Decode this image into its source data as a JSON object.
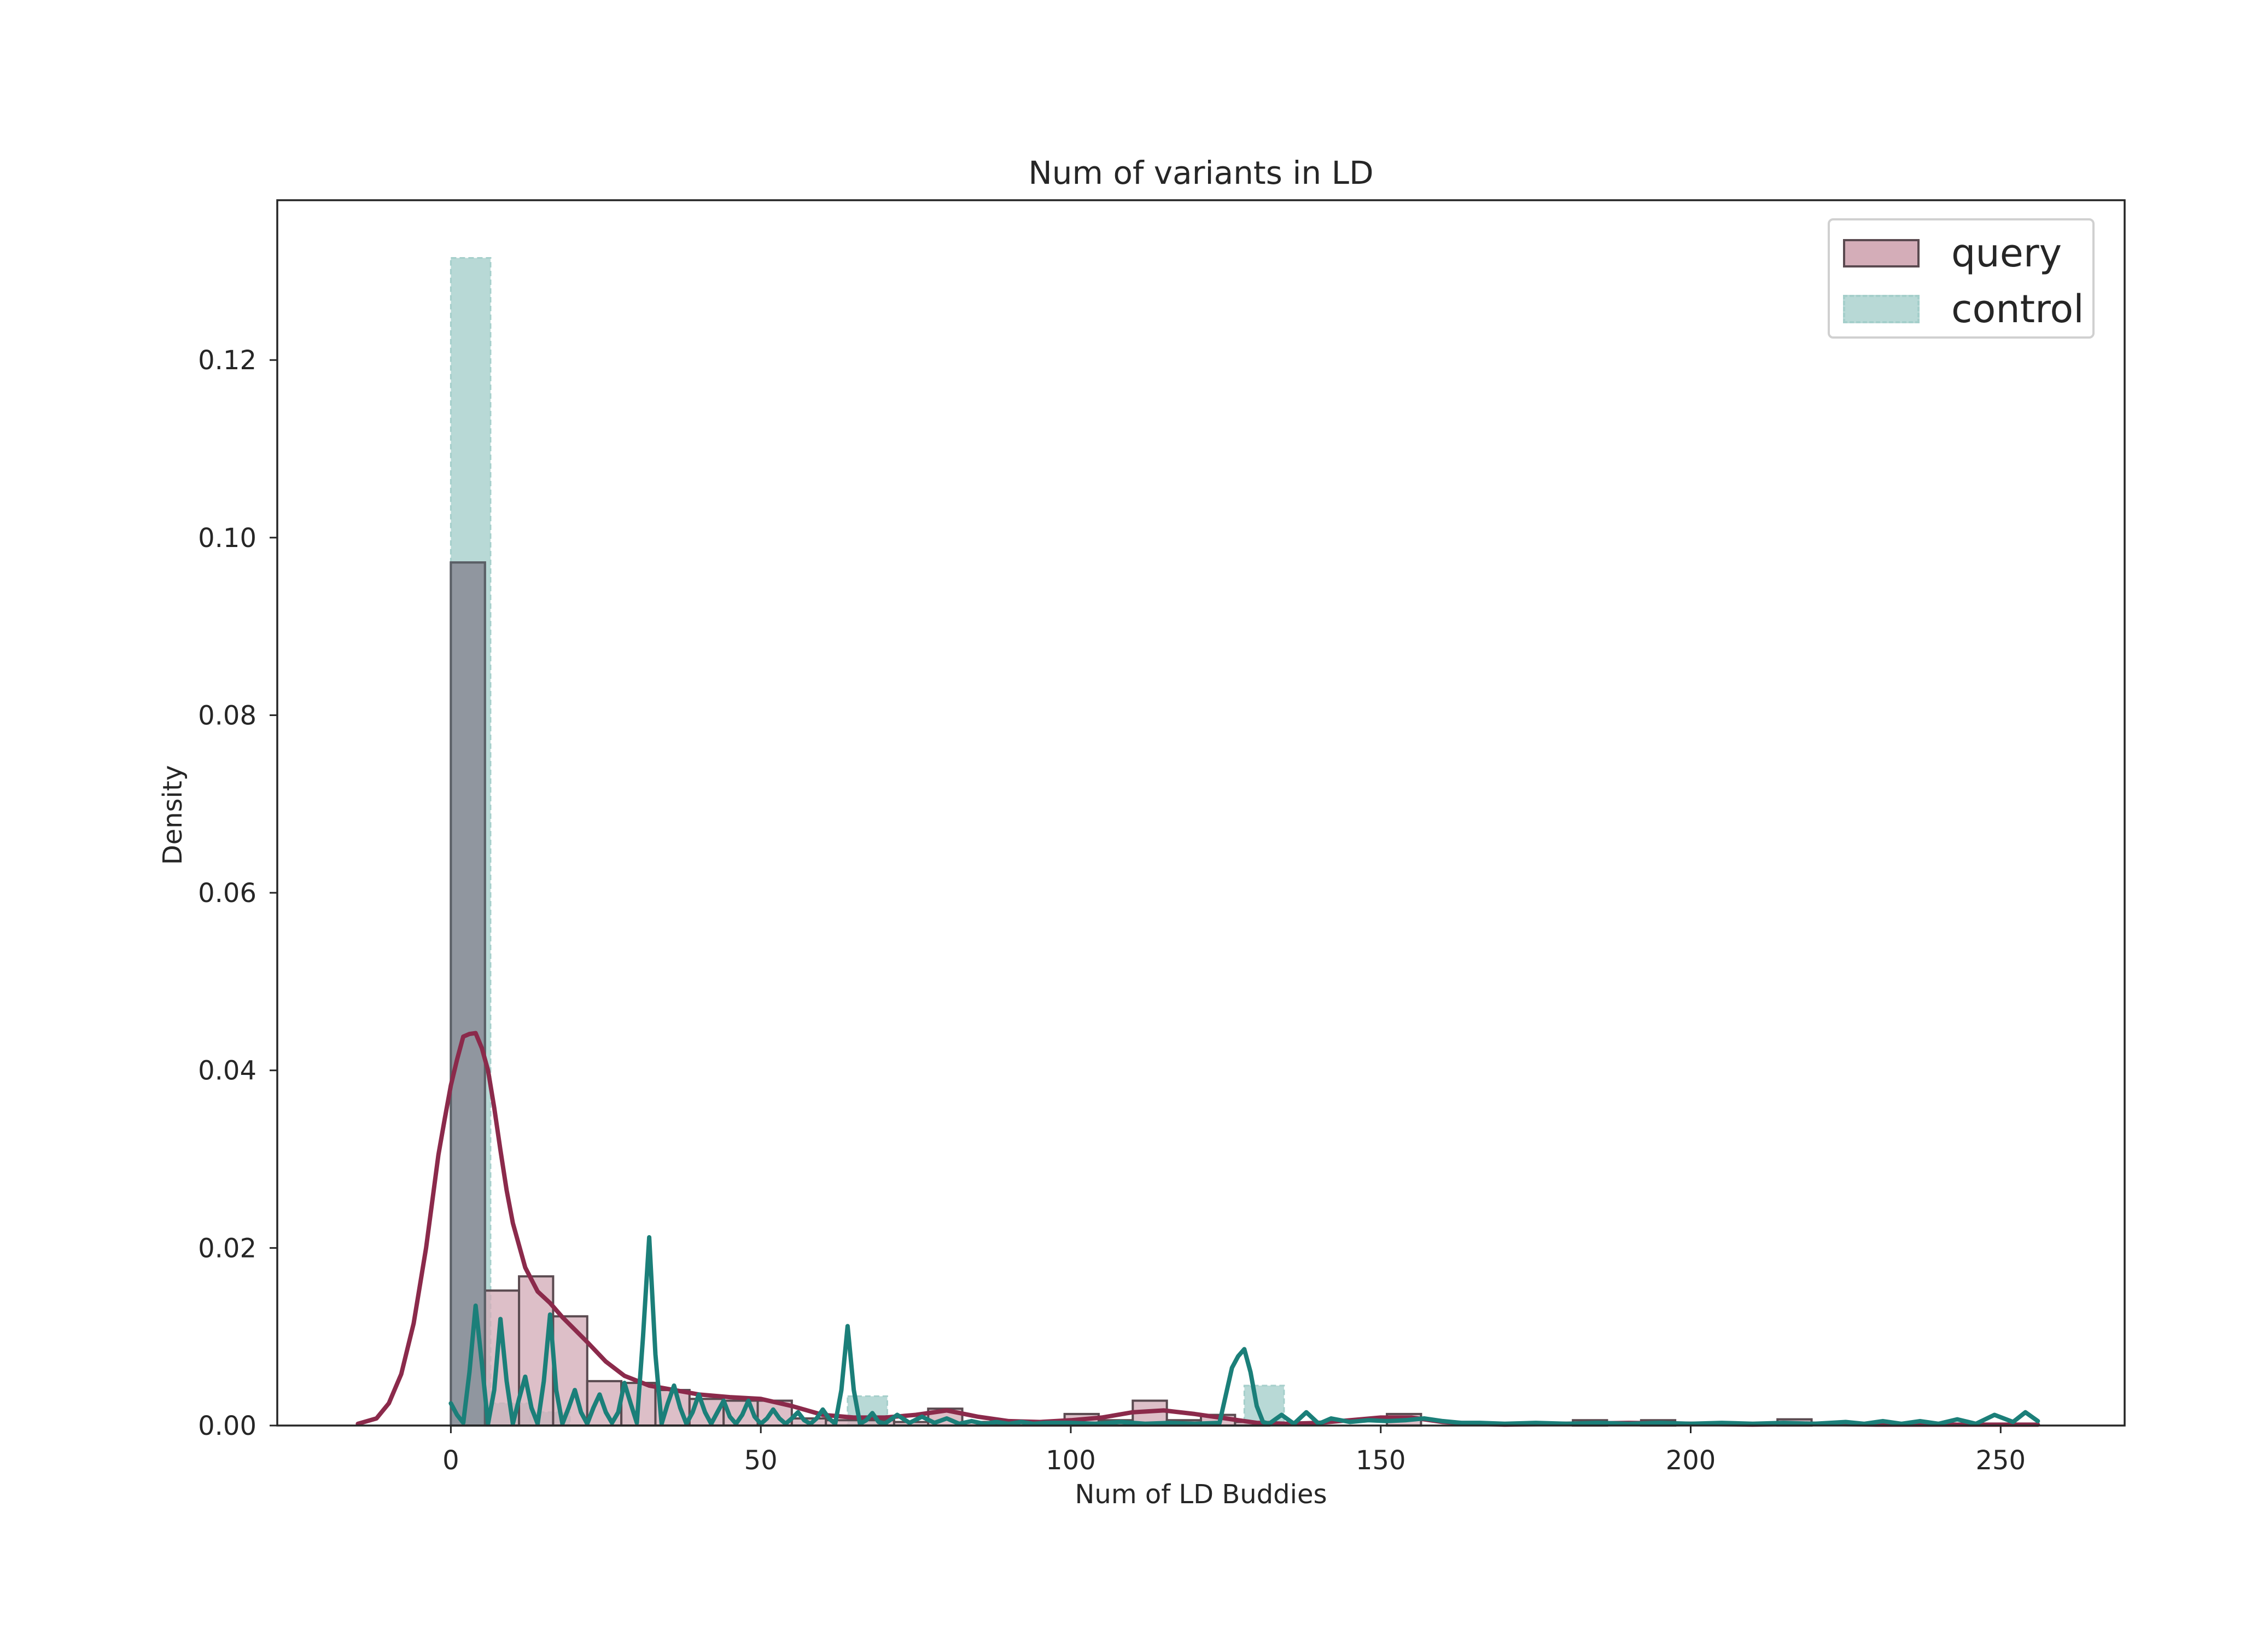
{
  "chart_data": {
    "type": "histogram",
    "title": "Num of variants in LD",
    "xlabel": "Num of LD Buddies",
    "ylabel": "Density",
    "xlim": [
      -28,
      270
    ],
    "ylim": [
      0,
      0.138
    ],
    "xticks": [
      0,
      50,
      100,
      150,
      200,
      250
    ],
    "xtick_labels": [
      "0",
      "50",
      "100",
      "150",
      "200",
      "250"
    ],
    "yticks": [
      0.0,
      0.02,
      0.04,
      0.06,
      0.08,
      0.1,
      0.12
    ],
    "ytick_labels": [
      "0.00",
      "0.02",
      "0.04",
      "0.06",
      "0.08",
      "0.10",
      "0.12"
    ],
    "grid": false,
    "legend_position": "top-right",
    "series": [
      {
        "name": "query",
        "color": "#8b2a4b",
        "hist_face": "#d4adb8",
        "hist_edge": "#5a4a50",
        "bins": [
          {
            "x0": 0.0,
            "x1": 5.5,
            "y": 0.0972
          },
          {
            "x0": 5.5,
            "x1": 11.0,
            "y": 0.0152
          },
          {
            "x0": 11.0,
            "x1": 16.5,
            "y": 0.0168
          },
          {
            "x0": 16.5,
            "x1": 22.0,
            "y": 0.0123
          },
          {
            "x0": 22.0,
            "x1": 27.5,
            "y": 0.005
          },
          {
            "x0": 27.5,
            "x1": 33.0,
            "y": 0.0048
          },
          {
            "x0": 33.0,
            "x1": 38.5,
            "y": 0.004
          },
          {
            "x0": 38.5,
            "x1": 44.0,
            "y": 0.003
          },
          {
            "x0": 44.0,
            "x1": 49.5,
            "y": 0.0028
          },
          {
            "x0": 49.5,
            "x1": 55.0,
            "y": 0.0028
          },
          {
            "x0": 55.0,
            "x1": 60.5,
            "y": 0.0008
          },
          {
            "x0": 60.5,
            "x1": 66.0,
            "y": 0.0006
          },
          {
            "x0": 66.0,
            "x1": 71.5,
            "y": 0.0006
          },
          {
            "x0": 71.5,
            "x1": 77.0,
            "y": 0.0004
          },
          {
            "x0": 77.0,
            "x1": 82.5,
            "y": 0.0019
          },
          {
            "x0": 82.5,
            "x1": 88.0,
            "y": 0.0004
          },
          {
            "x0": 88.0,
            "x1": 93.5,
            "y": 0.0003
          },
          {
            "x0": 93.5,
            "x1": 99.0,
            "y": 0.0003
          },
          {
            "x0": 99.0,
            "x1": 104.5,
            "y": 0.0013
          },
          {
            "x0": 104.5,
            "x1": 110.0,
            "y": 0.0006
          },
          {
            "x0": 110.0,
            "x1": 115.5,
            "y": 0.0028
          },
          {
            "x0": 115.5,
            "x1": 121.0,
            "y": 0.0006
          },
          {
            "x0": 121.0,
            "x1": 126.5,
            "y": 0.0012
          },
          {
            "x0": 126.5,
            "x1": 132.0,
            "y": 0.0004
          },
          {
            "x0": 151.0,
            "x1": 156.5,
            "y": 0.0013
          },
          {
            "x0": 181.0,
            "x1": 186.5,
            "y": 0.0006
          },
          {
            "x0": 192.0,
            "x1": 197.5,
            "y": 0.0006
          },
          {
            "x0": 214.0,
            "x1": 219.5,
            "y": 0.0007
          }
        ],
        "kde_x": [
          -15,
          -12,
          -10,
          -8,
          -6,
          -4,
          -2,
          -1,
          0,
          1,
          2,
          3,
          4,
          5,
          6,
          7,
          8,
          9,
          10,
          12,
          14,
          16,
          18,
          20,
          22,
          25,
          28,
          32,
          36,
          40,
          45,
          50,
          55,
          60,
          65,
          70,
          75,
          80,
          85,
          90,
          95,
          100,
          105,
          110,
          115,
          120,
          125,
          130,
          135,
          140,
          145,
          150,
          155,
          160,
          165,
          170,
          180,
          190,
          200,
          210,
          220,
          230,
          240,
          250,
          256
        ],
        "kde_y": [
          0.0002,
          0.0008,
          0.0025,
          0.0058,
          0.0115,
          0.02,
          0.0305,
          0.0345,
          0.0383,
          0.0412,
          0.0438,
          0.0441,
          0.0442,
          0.0425,
          0.04,
          0.0358,
          0.031,
          0.0265,
          0.0228,
          0.0178,
          0.0151,
          0.0138,
          0.0122,
          0.0108,
          0.0094,
          0.0072,
          0.0056,
          0.0045,
          0.004,
          0.0035,
          0.0032,
          0.003,
          0.0022,
          0.0012,
          0.0009,
          0.0009,
          0.0012,
          0.0017,
          0.001,
          0.0005,
          0.0004,
          0.0006,
          0.0009,
          0.0015,
          0.0017,
          0.0013,
          0.0008,
          0.0003,
          0.0002,
          0.0003,
          0.0006,
          0.0009,
          0.0009,
          0.0004,
          0.0002,
          0.0001,
          0.0002,
          0.0003,
          0.0002,
          0.0001,
          0.0002,
          0.0001,
          0.0001,
          0.0001,
          0.0001
        ]
      },
      {
        "name": "control",
        "color": "#1b7f79",
        "hist_face": "#b8d9d6",
        "hist_edge": "#a5cfcb",
        "bins": [
          {
            "x0": 0.0,
            "x1": 6.4,
            "y": 0.1315
          },
          {
            "x0": 6.4,
            "x1": 12.8,
            "y": 0.0025
          },
          {
            "x0": 12.8,
            "x1": 19.2,
            "y": 0.0015
          },
          {
            "x0": 64.0,
            "x1": 70.4,
            "y": 0.0033
          },
          {
            "x0": 128.0,
            "x1": 134.4,
            "y": 0.0045
          }
        ],
        "kde_x": [
          0,
          1,
          2,
          3,
          4,
          5,
          6,
          7,
          8,
          9,
          10,
          11,
          12,
          13,
          14,
          15,
          16,
          17,
          18,
          19,
          20,
          21,
          22,
          23,
          24,
          25,
          26,
          27,
          28,
          29,
          30,
          31,
          32,
          33,
          34,
          35,
          36,
          37,
          38,
          39,
          40,
          41,
          42,
          43,
          44,
          45,
          46,
          47,
          48,
          49,
          50,
          51,
          52,
          53,
          54,
          55,
          56,
          57,
          58,
          59,
          60,
          61,
          62,
          63,
          64,
          65,
          66,
          67,
          68,
          69,
          70,
          72,
          74,
          76,
          78,
          80,
          82,
          84,
          86,
          88,
          90,
          92,
          94,
          96,
          98,
          100,
          104,
          108,
          112,
          116,
          120,
          124,
          126,
          127,
          128,
          129,
          130,
          131,
          132,
          134,
          136,
          138,
          140,
          142,
          145,
          148,
          151,
          154,
          157,
          160,
          163,
          166,
          170,
          175,
          180,
          185,
          190,
          195,
          200,
          205,
          210,
          215,
          220,
          225,
          228,
          231,
          234,
          237,
          240,
          243,
          246,
          249,
          252,
          254,
          256
        ],
        "kde_y": [
          0.0025,
          0.0012,
          0.0003,
          0.006,
          0.0135,
          0.007,
          0.0002,
          0.004,
          0.012,
          0.005,
          0.0002,
          0.003,
          0.0055,
          0.002,
          0.0002,
          0.005,
          0.0125,
          0.004,
          0.0002,
          0.002,
          0.004,
          0.0015,
          0.0002,
          0.002,
          0.0035,
          0.0015,
          0.0003,
          0.0015,
          0.0048,
          0.0025,
          0.0003,
          0.01,
          0.0212,
          0.008,
          0.0002,
          0.0025,
          0.0045,
          0.002,
          0.0002,
          0.0015,
          0.0035,
          0.0015,
          0.0002,
          0.0015,
          0.0028,
          0.001,
          0.0002,
          0.0012,
          0.0028,
          0.001,
          0.0002,
          0.0008,
          0.0018,
          0.0008,
          0.0002,
          0.0008,
          0.0015,
          0.0006,
          0.0002,
          0.0008,
          0.0018,
          0.0008,
          0.0002,
          0.004,
          0.0112,
          0.004,
          0.0002,
          0.0006,
          0.0014,
          0.0004,
          0.0002,
          0.0012,
          0.0003,
          0.001,
          0.0003,
          0.0008,
          0.0002,
          0.0005,
          0.0002,
          0.0004,
          0.0002,
          0.0004,
          0.0002,
          0.0003,
          0.0003,
          0.0003,
          0.0002,
          0.0004,
          0.0002,
          0.0003,
          0.0002,
          0.0003,
          0.0065,
          0.0078,
          0.0086,
          0.006,
          0.0022,
          0.0004,
          0.0002,
          0.0012,
          0.0002,
          0.0015,
          0.0002,
          0.0008,
          0.0004,
          0.0006,
          0.0005,
          0.0006,
          0.0008,
          0.0005,
          0.0003,
          0.0003,
          0.0002,
          0.0003,
          0.0002,
          0.0003,
          0.0002,
          0.0003,
          0.0002,
          0.0003,
          0.0002,
          0.0003,
          0.0002,
          0.0004,
          0.0002,
          0.0005,
          0.0002,
          0.0005,
          0.0002,
          0.0007,
          0.0002,
          0.0012,
          0.0004,
          0.0015,
          0.0005
        ]
      }
    ]
  }
}
